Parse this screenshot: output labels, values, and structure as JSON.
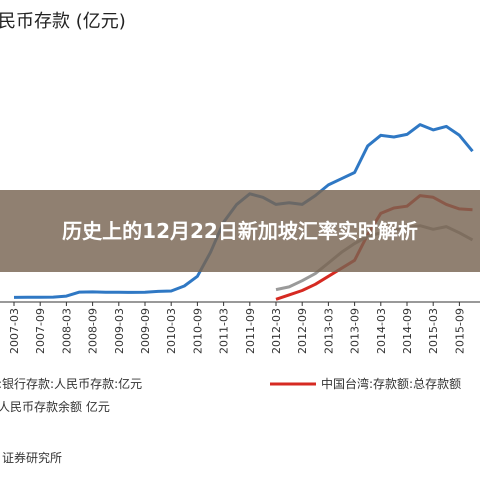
{
  "overlay": {
    "title": "历史上的12月22日新加坡汇率实时解析"
  },
  "chart_data": {
    "type": "line",
    "title": "民币存款 (亿元)",
    "x_ticks": [
      "2007-03",
      "2007-09",
      "2008-03",
      "2008-09",
      "2009-03",
      "2009-09",
      "2010-03",
      "2010-09",
      "2011-03",
      "2011-09",
      "2012-03",
      "2012-09",
      "2013-03",
      "2013-09",
      "2014-03",
      "2014-09",
      "2015-03",
      "2015-09"
    ],
    "series": [
      {
        "name": "港:银行存款:人民币存款:亿元",
        "color": "#2f78c4",
        "points": [
          [
            "2007-03",
            260
          ],
          [
            "2007-06",
            265
          ],
          [
            "2007-09",
            270
          ],
          [
            "2007-12",
            278
          ],
          [
            "2008-03",
            330
          ],
          [
            "2008-06",
            560
          ],
          [
            "2008-09",
            570
          ],
          [
            "2008-12",
            555
          ],
          [
            "2009-03",
            545
          ],
          [
            "2009-06",
            540
          ],
          [
            "2009-09",
            555
          ],
          [
            "2009-12",
            600
          ],
          [
            "2010-03",
            620
          ],
          [
            "2010-06",
            900
          ],
          [
            "2010-09",
            1450
          ],
          [
            "2010-12",
            2800
          ],
          [
            "2011-03",
            4500
          ],
          [
            "2011-06",
            5500
          ],
          [
            "2011-09",
            6100
          ],
          [
            "2011-12",
            5900
          ],
          [
            "2012-03",
            5500
          ],
          [
            "2012-06",
            5600
          ],
          [
            "2012-09",
            5500
          ],
          [
            "2012-12",
            6000
          ],
          [
            "2013-03",
            6600
          ],
          [
            "2013-06",
            6950
          ],
          [
            "2013-09",
            7300
          ],
          [
            "2013-12",
            8800
          ],
          [
            "2014-03",
            9400
          ],
          [
            "2014-06",
            9300
          ],
          [
            "2014-09",
            9450
          ],
          [
            "2014-12",
            10000
          ],
          [
            "2015-03",
            9700
          ],
          [
            "2015-06",
            9900
          ],
          [
            "2015-09",
            9400
          ],
          [
            "2015-12",
            8500
          ]
        ]
      },
      {
        "name": "中国台湾:存款额:总存款",
        "color": "#d62a22",
        "points": [
          [
            "2012-03",
            150
          ],
          [
            "2012-06",
            400
          ],
          [
            "2012-09",
            650
          ],
          [
            "2012-12",
            1000
          ],
          [
            "2013-03",
            1450
          ],
          [
            "2013-06",
            1900
          ],
          [
            "2013-09",
            2350
          ],
          [
            "2013-12",
            3800
          ],
          [
            "2014-03",
            5000
          ],
          [
            "2014-06",
            5300
          ],
          [
            "2014-09",
            5400
          ],
          [
            "2014-12",
            6000
          ],
          [
            "2015-03",
            5900
          ],
          [
            "2015-06",
            5500
          ],
          [
            "2015-09",
            5250
          ],
          [
            "2015-12",
            5200
          ]
        ]
      },
      {
        "name": "人民币存款余额 亿元",
        "color": "#9a9a9a",
        "points": [
          [
            "2012-03",
            700
          ],
          [
            "2012-06",
            850
          ],
          [
            "2012-09",
            1200
          ],
          [
            "2012-12",
            1600
          ],
          [
            "2013-03",
            2200
          ],
          [
            "2013-06",
            2800
          ],
          [
            "2013-09",
            3300
          ],
          [
            "2013-12",
            3700
          ],
          [
            "2014-03",
            3900
          ],
          [
            "2014-06",
            4050
          ],
          [
            "2014-09",
            4200
          ],
          [
            "2014-12",
            4300
          ],
          [
            "2015-03",
            4100
          ],
          [
            "2015-06",
            4250
          ],
          [
            "2015-09",
            3900
          ],
          [
            "2015-12",
            3500
          ]
        ]
      }
    ],
    "legend": [
      {
        "label": "港:银行存款:人民币存款:亿元",
        "color": "#2f78c4"
      },
      {
        "label": "中国台湾:存款额:总存款额",
        "color": "#d62a22"
      },
      {
        "label": "人民币存款余额 亿元",
        "color": "#9a9a9a"
      }
    ],
    "source": "证券研究所",
    "grid": false,
    "ylim": [
      0,
      11500
    ]
  }
}
